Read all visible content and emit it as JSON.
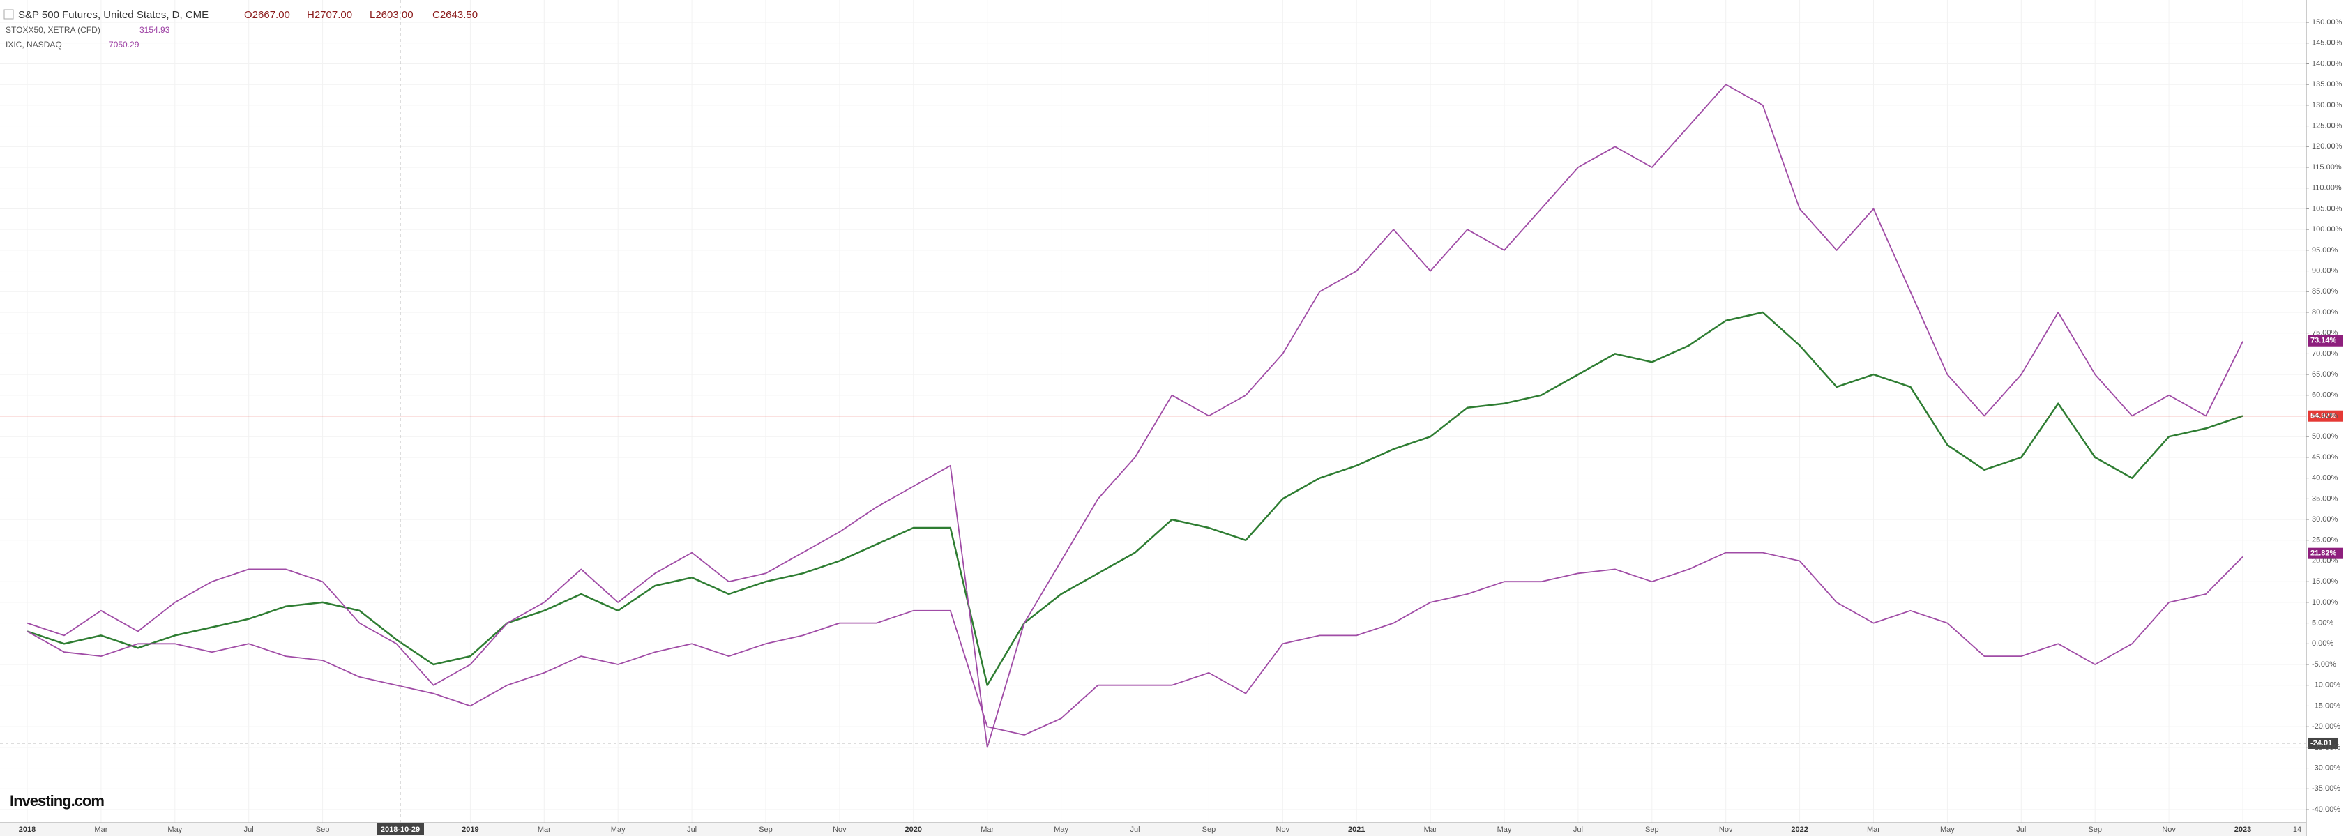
{
  "chart_data": {
    "type": "line",
    "title": "S&P 500 Futures, United States, D, CME",
    "ohlc": [
      "O2667.00",
      "H2707.00",
      "L2603.00",
      "C2643.50"
    ],
    "compare": [
      {
        "name": "STOXX50, XETRA (CFD)",
        "price": "3154.93"
      },
      {
        "name": "IXIC, NASDAQ",
        "price": "7050.29"
      }
    ],
    "logo": "Investing.com",
    "categories": [
      "2018",
      null,
      "Mar",
      null,
      "May",
      null,
      "Jul",
      null,
      "Sep",
      null,
      null,
      null,
      "2019",
      null,
      "Mar",
      null,
      "May",
      null,
      "Jul",
      null,
      "Sep",
      null,
      "Nov",
      null,
      "2020",
      null,
      "Mar",
      null,
      "May",
      null,
      "Jul",
      null,
      "Sep",
      null,
      "Nov",
      null,
      "2021",
      null,
      "Mar",
      null,
      "May",
      null,
      "Jul",
      null,
      "Sep",
      null,
      "Nov",
      null,
      "2022",
      null,
      "Mar",
      null,
      "May",
      null,
      "Jul",
      null,
      "Sep",
      null,
      "Nov",
      null,
      "2023"
    ],
    "end_label": "14",
    "series": [
      {
        "name": "S&P 500 Futures",
        "color": "#2e7d32",
        "values": [
          3,
          0,
          2,
          -1,
          2,
          4,
          6,
          9,
          10,
          8,
          1,
          -5,
          -3,
          5,
          8,
          12,
          8,
          14,
          16,
          12,
          15,
          17,
          20,
          24,
          28,
          28,
          -10,
          5,
          12,
          17,
          22,
          30,
          28,
          25,
          35,
          40,
          43,
          47,
          50,
          57,
          58,
          60,
          65,
          70,
          68,
          72,
          78,
          80,
          72,
          62,
          65,
          62,
          48,
          42,
          45,
          58,
          45,
          40,
          50,
          52,
          55
        ]
      },
      {
        "name": "IXIC, NASDAQ",
        "color": "#a04ca6",
        "values": [
          5,
          2,
          8,
          3,
          10,
          15,
          18,
          18,
          15,
          5,
          0,
          -10,
          -5,
          5,
          10,
          18,
          10,
          17,
          22,
          15,
          17,
          22,
          27,
          33,
          38,
          43,
          -25,
          5,
          20,
          35,
          45,
          60,
          55,
          60,
          70,
          85,
          90,
          100,
          90,
          100,
          95,
          105,
          115,
          120,
          115,
          125,
          135,
          130,
          105,
          95,
          105,
          85,
          65,
          55,
          65,
          80,
          65,
          55,
          60,
          55,
          73
        ]
      },
      {
        "name": "STOXX50, XETRA (CFD)",
        "color": "#a04ca6",
        "values": [
          3,
          -2,
          -3,
          0,
          0,
          -2,
          0,
          -3,
          -4,
          -8,
          -10,
          -12,
          -15,
          -10,
          -7,
          -3,
          -5,
          -2,
          0,
          -3,
          0,
          2,
          5,
          5,
          8,
          8,
          -20,
          -22,
          -18,
          -10,
          -10,
          -10,
          -7,
          -12,
          0,
          2,
          2,
          5,
          10,
          12,
          15,
          15,
          17,
          18,
          15,
          18,
          22,
          22,
          20,
          10,
          5,
          8,
          5,
          -3,
          -3,
          0,
          -5,
          0,
          10,
          12,
          21
        ]
      }
    ],
    "price_labels": [
      {
        "value": 73.14,
        "label": "73.14%",
        "color": "#8e1f7d"
      },
      {
        "value": 54.97,
        "label": "54.97%",
        "color": "#e53935"
      },
      {
        "value": 21.82,
        "label": "21.82%",
        "color": "#8e1f7d"
      }
    ],
    "crosshair": {
      "x_label": "2018-10-29",
      "value": -24.01,
      "label": "-24.01"
    },
    "ylim": [
      -43.2,
      155.4
    ],
    "yticks": [
      {
        "value": -40,
        "label": "-40.00%"
      },
      {
        "value": -35,
        "label": "-35.00%"
      },
      {
        "value": -30,
        "label": "-30.00%"
      },
      {
        "value": -25,
        "label": "-25.00%"
      },
      {
        "value": -20,
        "label": "-20.00%"
      },
      {
        "value": -15,
        "label": "-15.00%"
      },
      {
        "value": -10,
        "label": "-10.00%"
      },
      {
        "value": -5,
        "label": "-5.00%"
      },
      {
        "value": 0,
        "label": "0.00%"
      },
      {
        "value": 5,
        "label": "5.00%"
      },
      {
        "value": 10,
        "label": "10.00%"
      },
      {
        "value": 15,
        "label": "15.00%"
      },
      {
        "value": 20,
        "label": "20.00%"
      },
      {
        "value": 25,
        "label": "25.00%"
      },
      {
        "value": 30,
        "label": "30.00%"
      },
      {
        "value": 35,
        "label": "35.00%"
      },
      {
        "value": 40,
        "label": "40.00%"
      },
      {
        "value": 45,
        "label": "45.00%"
      },
      {
        "value": 50,
        "label": "50.00%"
      },
      {
        "value": 55,
        "label": "55.00%"
      },
      {
        "value": 60,
        "label": "60.00%"
      },
      {
        "value": 65,
        "label": "65.00%"
      },
      {
        "value": 70,
        "label": "70.00%"
      },
      {
        "value": 75,
        "label": "75.00%"
      },
      {
        "value": 80,
        "label": "80.00%"
      },
      {
        "value": 85,
        "label": "85.00%"
      },
      {
        "value": 90,
        "label": "90.00%"
      },
      {
        "value": 95,
        "label": "95.00%"
      },
      {
        "value": 100,
        "label": "100.00%"
      },
      {
        "value": 105,
        "label": "105.00%"
      },
      {
        "value": 110,
        "label": "110.00%"
      },
      {
        "value": 115,
        "label": "115.00%"
      },
      {
        "value": 120,
        "label": "120.00%"
      },
      {
        "value": 125,
        "label": "125.00%"
      },
      {
        "value": 130,
        "label": "130.00%"
      },
      {
        "value": 135,
        "label": "135.00%"
      },
      {
        "value": 140,
        "label": "140.00%"
      },
      {
        "value": 145,
        "label": "145.00%"
      },
      {
        "value": 150,
        "label": "150.00%"
      }
    ],
    "grid": true
  }
}
